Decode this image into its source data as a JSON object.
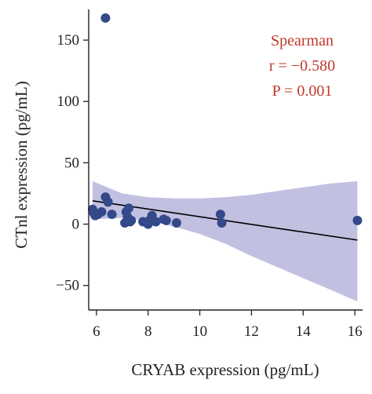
{
  "chart_data": {
    "type": "scatter",
    "xlabel": "CRYAB expression (pg/mL)",
    "ylabel": "CTnl expression (pg/mL)",
    "xlim": [
      5.7,
      16.3
    ],
    "ylim": [
      -70,
      175
    ],
    "x_ticks": [
      6,
      8,
      10,
      12,
      14,
      16
    ],
    "y_ticks": [
      -50,
      0,
      50,
      100,
      150
    ],
    "grid": false,
    "annotation": {
      "method": "Spearman",
      "r_text": "r = −0.580",
      "p_text": "P = 0.001"
    },
    "points": [
      {
        "x": 6.35,
        "y": 168
      },
      {
        "x": 5.85,
        "y": 12
      },
      {
        "x": 5.9,
        "y": 9
      },
      {
        "x": 5.95,
        "y": 7
      },
      {
        "x": 6.05,
        "y": 8
      },
      {
        "x": 6.2,
        "y": 10
      },
      {
        "x": 6.35,
        "y": 22
      },
      {
        "x": 6.45,
        "y": 18
      },
      {
        "x": 6.6,
        "y": 8
      },
      {
        "x": 7.1,
        "y": 1
      },
      {
        "x": 7.15,
        "y": 10
      },
      {
        "x": 7.2,
        "y": 6
      },
      {
        "x": 7.25,
        "y": 13
      },
      {
        "x": 7.3,
        "y": 2
      },
      {
        "x": 7.35,
        "y": 3
      },
      {
        "x": 7.8,
        "y": 2
      },
      {
        "x": 8.0,
        "y": 0
      },
      {
        "x": 8.05,
        "y": 3
      },
      {
        "x": 8.15,
        "y": 7
      },
      {
        "x": 8.3,
        "y": 2
      },
      {
        "x": 8.6,
        "y": 4
      },
      {
        "x": 8.7,
        "y": 3
      },
      {
        "x": 9.1,
        "y": 1
      },
      {
        "x": 10.8,
        "y": 8
      },
      {
        "x": 10.85,
        "y": 1
      },
      {
        "x": 16.1,
        "y": 3
      }
    ],
    "fit_line": {
      "x": [
        5.85,
        16.1
      ],
      "y": [
        19,
        -13
      ]
    },
    "confidence_band": {
      "x": [
        5.85,
        7.0,
        8.0,
        9.0,
        10.0,
        11.0,
        12.0,
        13.0,
        14.0,
        15.0,
        16.1
      ],
      "upper": [
        35,
        25,
        22,
        21,
        21,
        22,
        24,
        27,
        30,
        33,
        35
      ],
      "lower": [
        4,
        5,
        3,
        -2,
        -8,
        -16,
        -26,
        -35,
        -44,
        -53,
        -63
      ]
    },
    "colors": {
      "points": "#34498a",
      "line": "#000000",
      "band": "#b7b5dc",
      "annotation": "#c0392b"
    }
  }
}
